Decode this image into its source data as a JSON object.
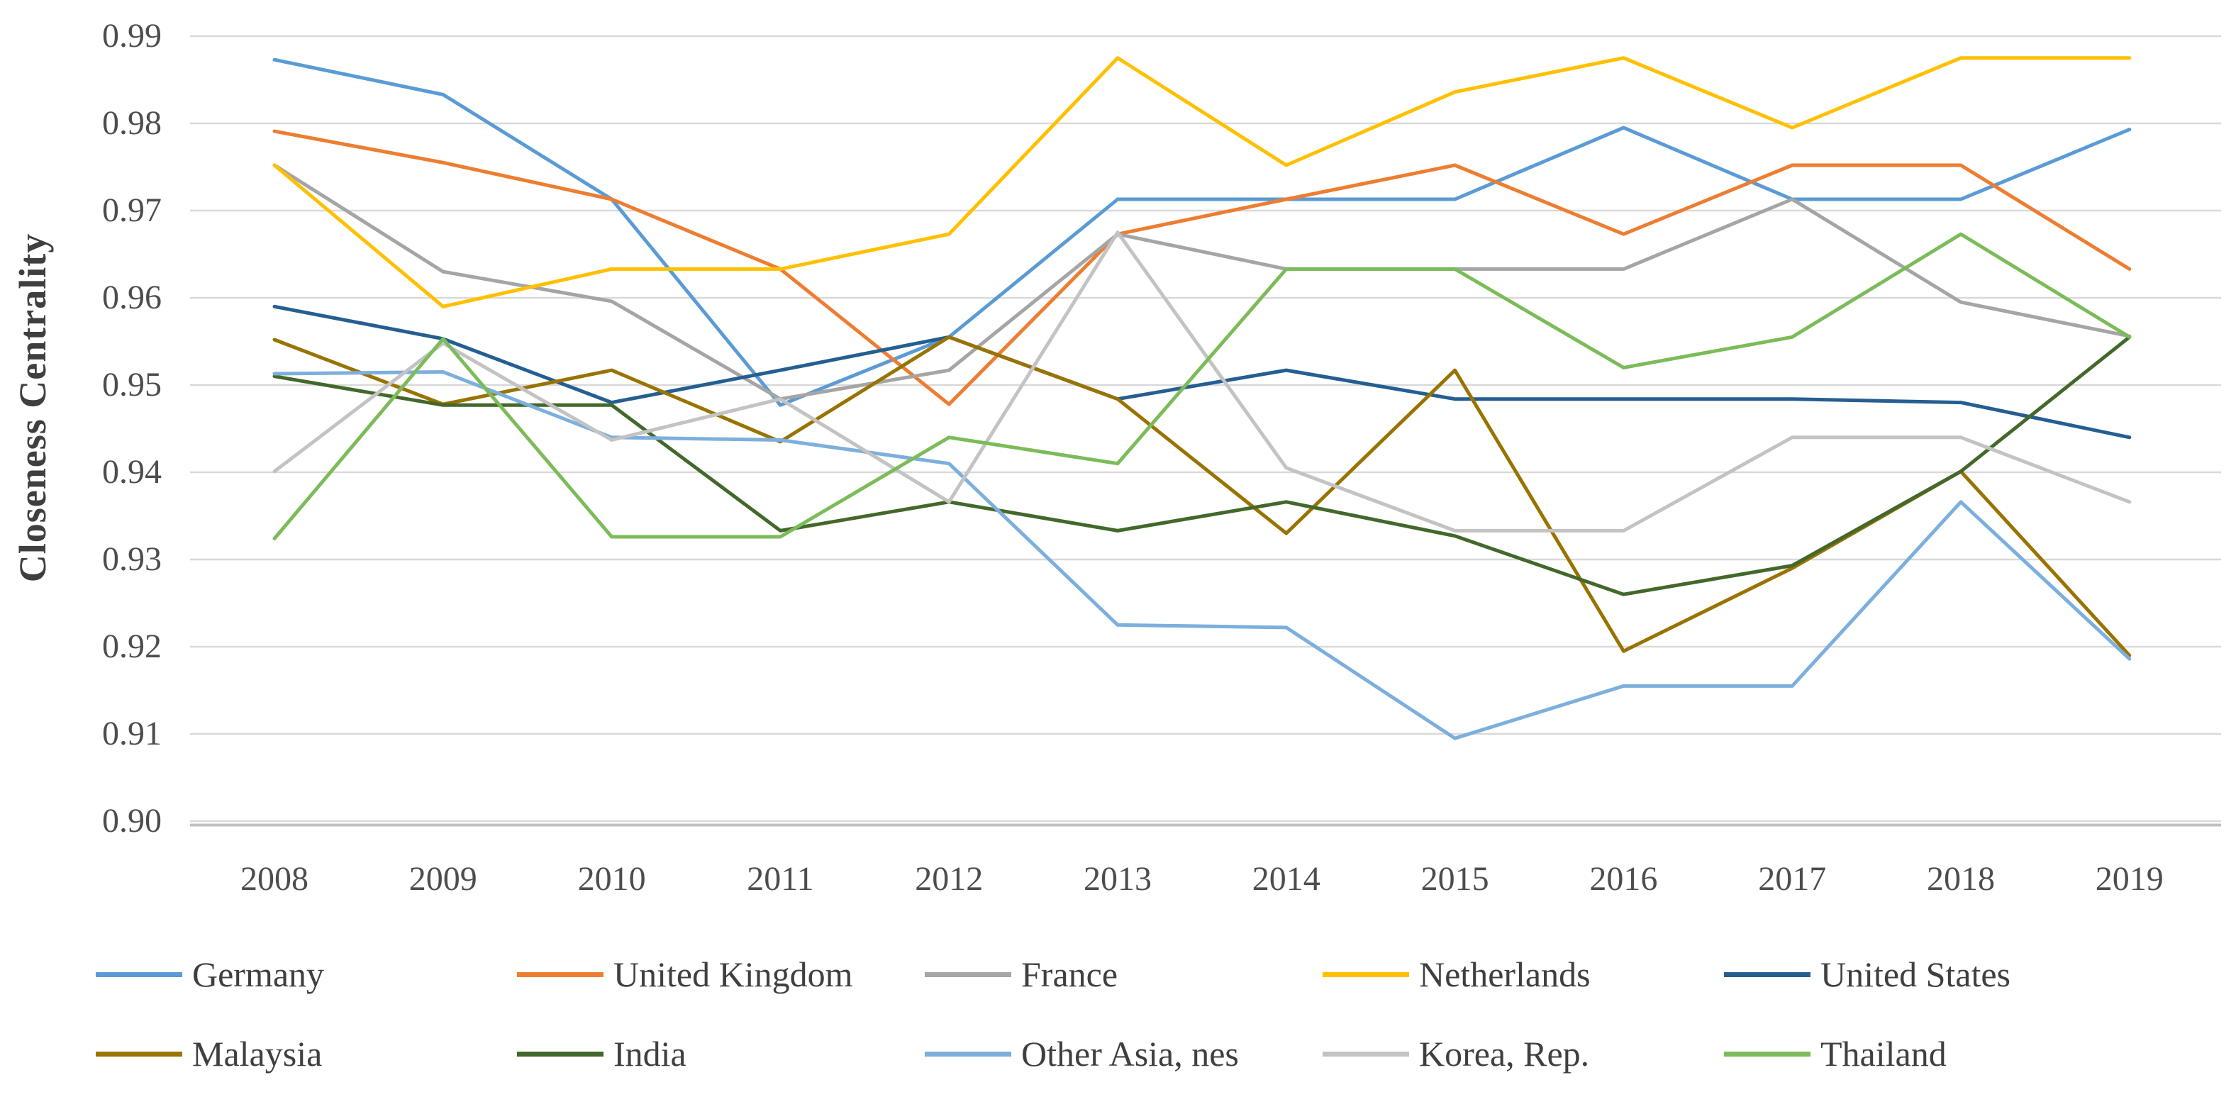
{
  "chart_data": {
    "type": "line",
    "title": "",
    "xlabel": "",
    "ylabel": "Closeness Centrality",
    "ylim": [
      0.9,
      0.99
    ],
    "grid": true,
    "legend_position": "bottom",
    "categories": [
      "2008",
      "2009",
      "2010",
      "2011",
      "2012",
      "2013",
      "2014",
      "2015",
      "2016",
      "2017",
      "2018",
      "2019"
    ],
    "ytick_labels": [
      "0.99",
      "0.98",
      "0.97",
      "0.96",
      "0.95",
      "0.94",
      "0.93",
      "0.92",
      "0.91",
      "0.90"
    ],
    "gridline_color": "#d9d9d9",
    "axisline_color": "#bfbfbf",
    "tick_text_color": "#4d4d4d",
    "series": [
      {
        "name": "Germany",
        "color": "#5B9BD5",
        "values": [
          0.9873,
          0.9833,
          0.9713,
          0.9477,
          0.9555,
          0.9713,
          0.9713,
          0.9713,
          0.9795,
          0.9713,
          0.9713,
          0.9793
        ]
      },
      {
        "name": "United Kingdom",
        "color": "#ED7D31",
        "values": [
          0.9791,
          0.9755,
          0.9713,
          0.9633,
          0.9478,
          0.9673,
          0.9713,
          0.9752,
          0.9673,
          0.9752,
          0.9752,
          0.9633
        ]
      },
      {
        "name": "France",
        "color": "#A5A5A5",
        "values": [
          0.9752,
          0.963,
          0.9596,
          0.9484,
          0.9517,
          0.9673,
          0.9633,
          0.9633,
          0.9633,
          0.9713,
          0.9595,
          0.9556
        ]
      },
      {
        "name": "Netherlands",
        "color": "#FFC000",
        "values": [
          0.9752,
          0.959,
          0.9633,
          0.9633,
          0.9673,
          0.9875,
          0.9752,
          0.9836,
          0.9875,
          0.9795,
          0.9875,
          0.9875
        ]
      },
      {
        "name": "United States",
        "color": "#255E91",
        "values": [
          0.959,
          0.9553,
          0.948,
          0.9517,
          0.9555,
          0.9484,
          0.9517,
          0.9484,
          0.9484,
          0.9484,
          0.948,
          0.944
        ]
      },
      {
        "name": "Malaysia",
        "color": "#997300",
        "values": [
          0.9552,
          0.9478,
          0.9517,
          0.9435,
          0.9555,
          0.9484,
          0.933,
          0.9517,
          0.9195,
          0.929,
          0.9401,
          0.919
        ]
      },
      {
        "name": "India",
        "color": "#43682B",
        "values": [
          0.951,
          0.9477,
          0.9477,
          0.9333,
          0.9366,
          0.9333,
          0.9366,
          0.9327,
          0.926,
          0.9293,
          0.9401,
          0.9555
        ]
      },
      {
        "name": "Other Asia, nes",
        "color": "#7CAFDD",
        "values": [
          0.9513,
          0.9515,
          0.944,
          0.9437,
          0.941,
          0.9225,
          0.9222,
          0.9095,
          0.9155,
          0.9155,
          0.9366,
          0.9186
        ]
      },
      {
        "name": "Korea, Rep.",
        "color": "#C3C3C3",
        "values": [
          0.9401,
          0.9548,
          0.9437,
          0.9484,
          0.9366,
          0.9675,
          0.9405,
          0.9333,
          0.9333,
          0.944,
          0.944,
          0.9366
        ]
      },
      {
        "name": "Thailand",
        "color": "#7CBB59",
        "values": [
          0.9324,
          0.9553,
          0.9326,
          0.9326,
          0.944,
          0.941,
          0.9633,
          0.9633,
          0.952,
          0.9555,
          0.9673,
          0.9555
        ]
      }
    ]
  }
}
